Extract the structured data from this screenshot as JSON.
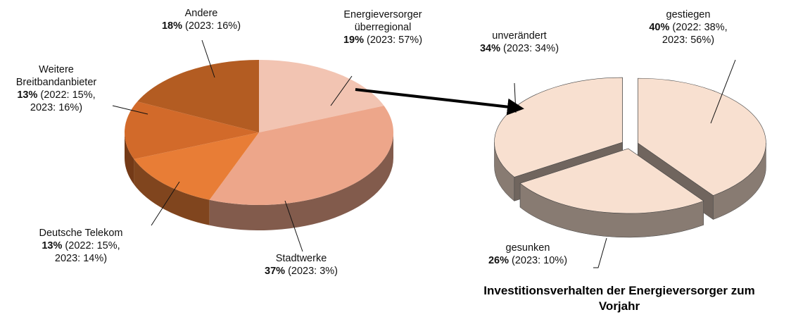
{
  "chart_data": [
    {
      "type": "pie",
      "categories": [
        "Energieversorger überregional",
        "Stadtwerke",
        "Deutsche Telekom",
        "Weitere Breitbandanbieter",
        "Andere"
      ],
      "values": [
        19,
        37,
        13,
        13,
        18
      ],
      "value_labels": [
        "19%",
        "37%",
        "13%",
        "13%",
        "18%"
      ],
      "annotations": [
        "(2023: 57%)",
        "(2023: 3%)",
        "(2022: 15%, 2023: 14%)",
        "(2022: 15%, 2023: 16%)",
        "(2023: 16%)"
      ],
      "colors": [
        "#f2c4b2",
        "#eda68a",
        "#e87d36",
        "#d26a2a",
        "#b35c22"
      ]
    },
    {
      "type": "pie",
      "title": "Investitionsverhalten der Energieversorger zum Vorjahr",
      "categories": [
        "gestiegen",
        "gesunken",
        "unverändert"
      ],
      "values": [
        40,
        26,
        34
      ],
      "value_labels": [
        "40%",
        "26%",
        "34%"
      ],
      "annotations": [
        "(2022: 38%, 2023: 56%)",
        "(2023: 10%)",
        "(2023: 34%)"
      ],
      "colors": [
        "#f8e0d0",
        "#f8e0d0",
        "#f8e0d0"
      ],
      "exploded": true
    }
  ]
}
